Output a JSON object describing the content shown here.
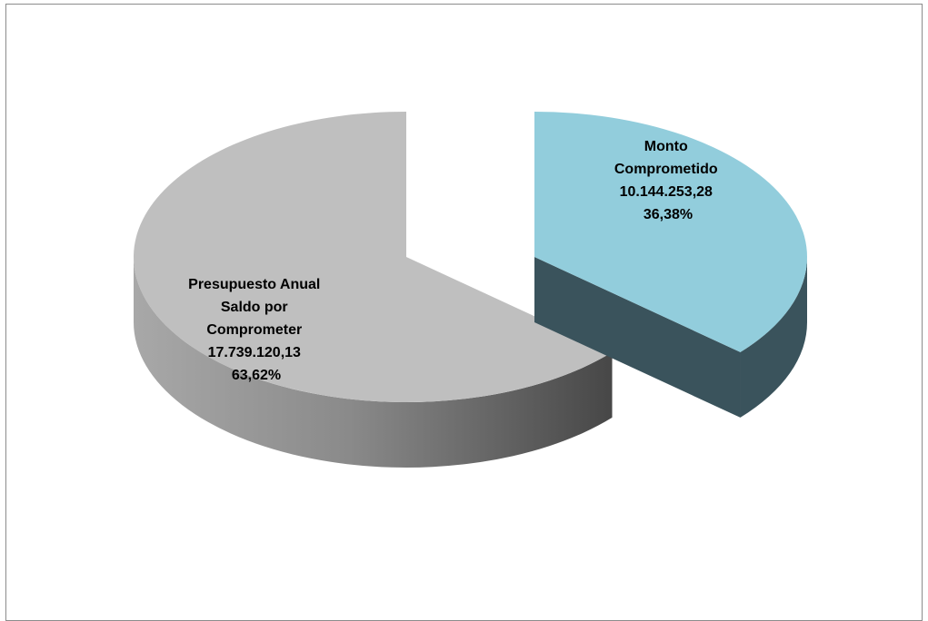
{
  "chart_data": {
    "type": "pie",
    "title": "",
    "style": "3d-exploded",
    "slices": [
      {
        "label_lines": [
          "Presupuesto Anual",
          "Saldo por",
          "Comprometer"
        ],
        "value": 17739120.13,
        "value_text": "17.739.120,13",
        "percent": 63.62,
        "percent_text": "63,62%",
        "color": "#bfbfbf",
        "side_color": "#6e6e6e"
      },
      {
        "label_lines": [
          "Monto",
          "Comprometido"
        ],
        "value": 10144253.28,
        "value_text": "10.144.253,28",
        "percent": 36.38,
        "percent_text": "36,38%",
        "color": "#92cddc",
        "side_color": "#3a535c"
      }
    ]
  }
}
